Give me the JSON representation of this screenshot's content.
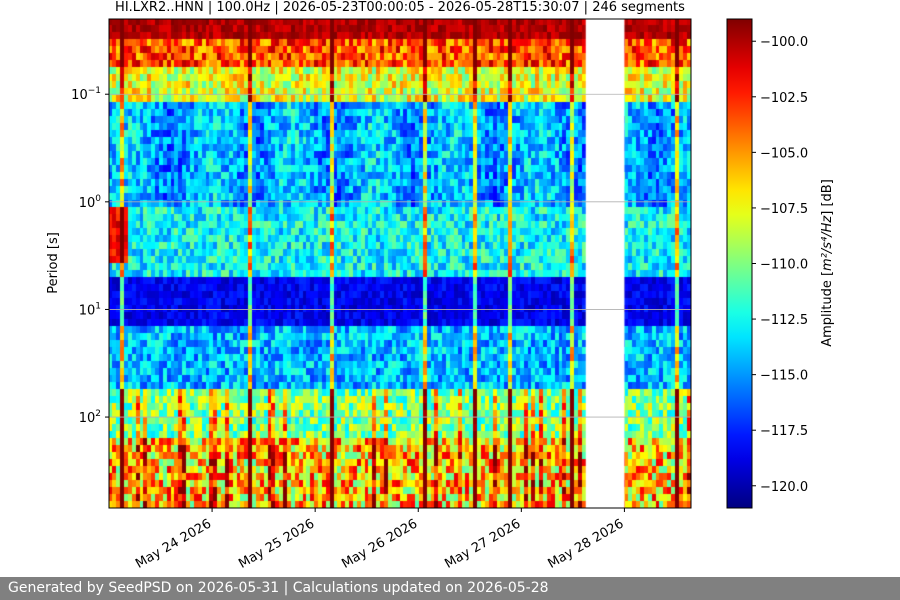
{
  "chart_data": {
    "type": "heatmap",
    "title": "HI.LXR2..HNN | 100.0Hz | 2026-05-23T00:00:05 - 2026-05-28T15:30:07 | 246 segments",
    "ylabel": "Period [s]",
    "xlabel": "",
    "y_scale": "log",
    "y_inverted": true,
    "ylim": [
      0.02,
      700
    ],
    "xlim": [
      "2026-05-23T00:00:05",
      "2026-05-28T15:30:07"
    ],
    "x_ticks": [
      {
        "date": "2026-05-24",
        "label": "May 24 2026"
      },
      {
        "date": "2026-05-25",
        "label": "May 25 2026"
      },
      {
        "date": "2026-05-26",
        "label": "May 26 2026"
      },
      {
        "date": "2026-05-27",
        "label": "May 27 2026"
      },
      {
        "date": "2026-05-28",
        "label": "May 28 2026"
      }
    ],
    "y_ticks": [
      {
        "value": 0.1,
        "base": "10",
        "exp": "−1"
      },
      {
        "value": 1,
        "base": "10",
        "exp": "0"
      },
      {
        "value": 10,
        "base": "10",
        "exp": "1"
      },
      {
        "value": 100,
        "base": "10",
        "exp": "2"
      }
    ],
    "grid": "horizontal",
    "data_gaps": [
      {
        "start": "2026-05-27T15:00:00",
        "end": "2026-05-28T00:00:00"
      }
    ],
    "colorbar": {
      "label_prefix": "Amplitude [",
      "label_math": "m²/s⁴/Hz",
      "label_suffix": "] [dB]",
      "vmin": -121,
      "vmax": -99,
      "colormap": "jet",
      "ticks": [
        {
          "value": -100.0,
          "label": "−100.0"
        },
        {
          "value": -102.5,
          "label": "−102.5"
        },
        {
          "value": -105.0,
          "label": "−105.0"
        },
        {
          "value": -107.5,
          "label": "−107.5"
        },
        {
          "value": -110.0,
          "label": "−110.0"
        },
        {
          "value": -112.5,
          "label": "−112.5"
        },
        {
          "value": -115.0,
          "label": "−115.0"
        },
        {
          "value": -117.5,
          "label": "−117.5"
        },
        {
          "value": -120.0,
          "label": "−120.0"
        }
      ]
    }
  },
  "footer": {
    "text": "Generated by SeedPSD on 2026-05-31 | Calculations updated on 2026-05-28"
  }
}
